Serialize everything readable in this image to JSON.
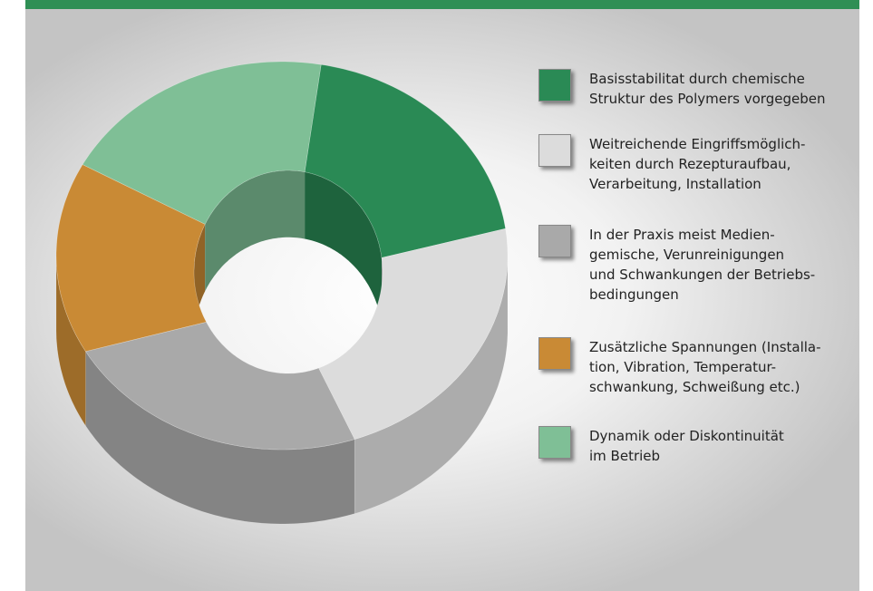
{
  "chart_data": {
    "type": "donut",
    "categories": [
      "Basisstabilitat durch chemische\nStruktur des Polymers vorgegeben",
      "Weitreichende Eingriffsmöglich-\nkeiten durch Rezepturaufbau,\nVerarbeitung, Installation",
      "In der Praxis meist Medien-\ngemische, Verunreinigungen\nund Schwankungen der Betriebs-\nbedingungen",
      "Zusätzliche Spannungen (Installa-\ntion, Vibration, Temperatur-\nschwankung, Schweißung etc.)",
      "Dynamik oder Diskontinuität\nim Betrieb"
    ],
    "values": [
      20,
      22,
      22,
      16,
      20
    ],
    "colors": [
      "#2a8a55",
      "#dcdcdc",
      "#a9a9a9",
      "#c98a35",
      "#7fbf96"
    ]
  }
}
